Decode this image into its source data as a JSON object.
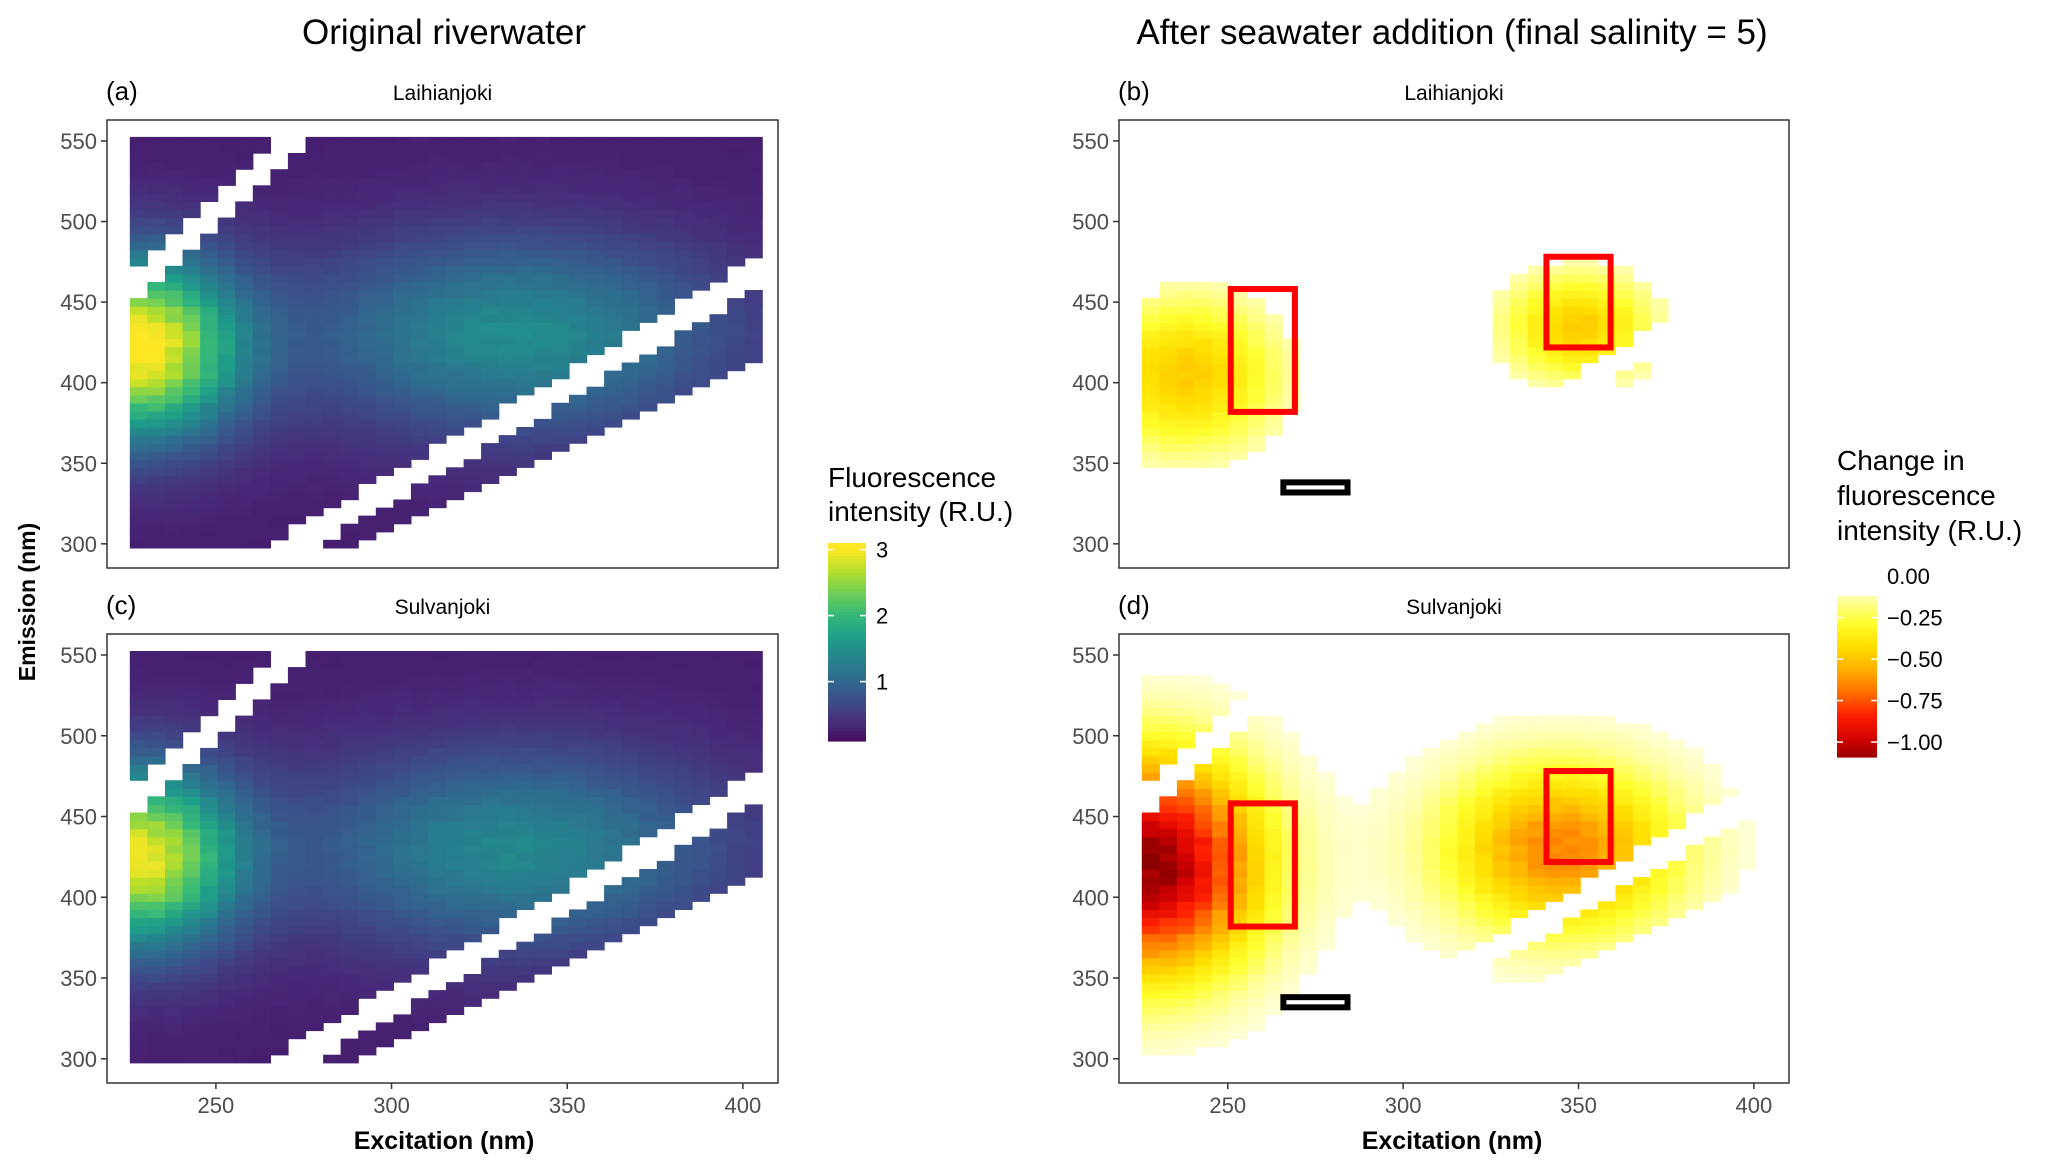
{
  "column_titles": [
    "Original riverwater",
    "After seawater addition (final salinity = 5)"
  ],
  "axis": {
    "xlabel": "Excitation (nm)",
    "ylabel": "Emission (nm)",
    "xlim": [
      219,
      410
    ],
    "ylim": [
      285,
      563
    ],
    "xticks": [
      250,
      300,
      350,
      400
    ],
    "yticks": [
      300,
      350,
      400,
      450,
      500,
      550
    ]
  },
  "legends": {
    "fluorescence": {
      "title": [
        "Fluorescence",
        "intensity (R.U.)"
      ],
      "range": [
        0,
        3
      ],
      "ticks": [
        3,
        2,
        1
      ],
      "tick_labels": [
        "3",
        "2",
        "1"
      ],
      "colors": [
        "#440154",
        "#482878",
        "#3e4a89",
        "#31688e",
        "#26828e",
        "#1f9e89",
        "#35b779",
        "#6ece58",
        "#b5de2b",
        "#fde725"
      ]
    },
    "change": {
      "title": [
        "Change in",
        "fluorescence",
        "intensity (R.U.)"
      ],
      "range": [
        -1.09,
        -0.12
      ],
      "ticks": [
        0,
        -0.25,
        -0.5,
        -0.75,
        -1.0
      ],
      "tick_labels": [
        "0.00",
        "−0.25",
        "−0.50",
        "−0.75",
        "−1.00"
      ],
      "colors": [
        "#8b0000",
        "#d40000",
        "#ff2000",
        "#ff7000",
        "#ffb000",
        "#ffe000",
        "#ffff30",
        "#ffffa0",
        "#ffffff"
      ]
    }
  },
  "chart_data": [
    {
      "type": "heatmap",
      "panel": "(a)",
      "title": "Laihianjoki",
      "scale": "fluorescence",
      "grid": {
        "ex": [
          228,
          403,
          5
        ],
        "em": [
          300,
          550,
          5
        ]
      },
      "base": 0.25,
      "peaks": [
        {
          "ex": 228,
          "em": 422,
          "value": 2.8,
          "sx": 28,
          "sy": 55
        },
        {
          "ex": 335,
          "em": 430,
          "value": 1.2,
          "sx": 60,
          "sy": 60
        }
      ],
      "regions": []
    },
    {
      "type": "heatmap",
      "panel": "(b)",
      "title": "Laihianjoki",
      "scale": "change",
      "grid": {
        "ex": [
          228,
          403,
          5
        ],
        "em": [
          300,
          550,
          5
        ]
      },
      "base": 0,
      "threshold": -0.12,
      "peaks": [
        {
          "ex": 238,
          "em": 405,
          "value": -0.48,
          "sx": 28,
          "sy": 50
        },
        {
          "ex": 350,
          "em": 435,
          "value": -0.48,
          "sx": 22,
          "sy": 35
        }
      ],
      "regions": [
        {
          "ex": [
            250,
            270
          ],
          "em": [
            380,
            460
          ],
          "color": "#ff0000"
        },
        {
          "ex": [
            340,
            360
          ],
          "em": [
            420,
            480
          ],
          "color": "#ff0000"
        },
        {
          "ex": [
            265,
            285
          ],
          "em": [
            330,
            340
          ],
          "color": "#000000"
        }
      ]
    },
    {
      "type": "heatmap",
      "panel": "(c)",
      "title": "Sulvanjoki",
      "scale": "fluorescence",
      "grid": {
        "ex": [
          228,
          403,
          5
        ],
        "em": [
          300,
          550,
          5
        ]
      },
      "base": 0.25,
      "peaks": [
        {
          "ex": 228,
          "em": 425,
          "value": 2.6,
          "sx": 28,
          "sy": 55
        },
        {
          "ex": 335,
          "em": 430,
          "value": 1.15,
          "sx": 60,
          "sy": 60
        }
      ],
      "regions": []
    },
    {
      "type": "heatmap",
      "panel": "(d)",
      "title": "Sulvanjoki",
      "scale": "change",
      "grid": {
        "ex": [
          228,
          403,
          5
        ],
        "em": [
          300,
          550,
          5
        ]
      },
      "base": 0,
      "threshold": -0.06,
      "peaks": [
        {
          "ex": 228,
          "em": 420,
          "value": -1.1,
          "sx": 32,
          "sy": 70
        },
        {
          "ex": 345,
          "em": 430,
          "value": -0.65,
          "sx": 35,
          "sy": 55
        }
      ],
      "regions": [
        {
          "ex": [
            250,
            270
          ],
          "em": [
            380,
            460
          ],
          "color": "#ff0000"
        },
        {
          "ex": [
            340,
            360
          ],
          "em": [
            420,
            480
          ],
          "color": "#ff0000"
        },
        {
          "ex": [
            265,
            285
          ],
          "em": [
            330,
            340
          ],
          "color": "#000000"
        }
      ]
    }
  ]
}
